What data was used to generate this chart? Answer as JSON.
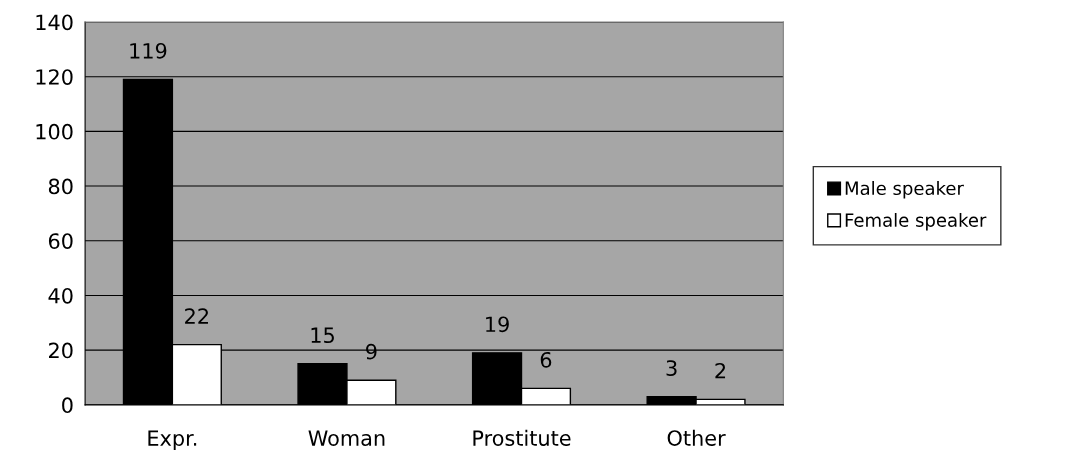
{
  "chart_data": {
    "type": "bar",
    "categories": [
      "Expr.",
      "Woman",
      "Prostitute",
      "Other"
    ],
    "series": [
      {
        "name": "Male speaker",
        "color": "#000000",
        "values": [
          119,
          15,
          19,
          3
        ]
      },
      {
        "name": "Female speaker",
        "color": "#ffffff",
        "values": [
          22,
          9,
          6,
          2
        ]
      }
    ],
    "ylim": [
      0,
      140
    ],
    "yticks": [
      0,
      20,
      40,
      60,
      80,
      100,
      120,
      140
    ],
    "grid": "y",
    "legend": "right",
    "data_labels": true
  }
}
